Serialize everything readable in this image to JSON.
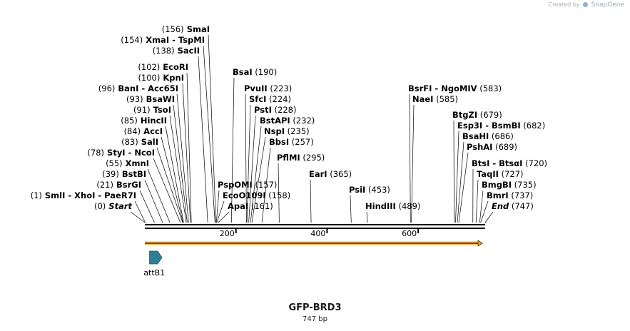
{
  "credit": {
    "prefix": "Created by",
    "brand": "SnapGene"
  },
  "plasmid": {
    "name": "GFP-BRD3",
    "length_label": "747 bp",
    "length": 747
  },
  "scale": {
    "ticks": [
      200,
      400,
      600
    ]
  },
  "sites": [
    {
      "pos": 156,
      "label": "(156)  SmaI"
    },
    {
      "pos": 154,
      "label": "(154)  XmaI  - TspMI"
    },
    {
      "pos": 138,
      "label": "(138)  SacII"
    },
    {
      "pos": 102,
      "label": "(102)  EcoRI"
    },
    {
      "pos": 100,
      "label": "(100)  KpnI"
    },
    {
      "pos": 96,
      "label": "(96)  BanI  - Acc65I"
    },
    {
      "pos": 93,
      "label": "(93)  BsaWI"
    },
    {
      "pos": 91,
      "label": "(91)  TsoI"
    },
    {
      "pos": 85,
      "label": "(85)  HincII"
    },
    {
      "pos": 84,
      "label": "(84)  AccI"
    },
    {
      "pos": 83,
      "label": "(83)  SalI"
    },
    {
      "pos": 78,
      "label": "(78)  StyI  - NcoI"
    },
    {
      "pos": 55,
      "label": "(55)  XmnI"
    },
    {
      "pos": 39,
      "label": "(39)  BstBI"
    },
    {
      "pos": 21,
      "label": "(21)  BsrGI"
    },
    {
      "pos": 1,
      "label": "(1)  SmlI  - XhoI  - PaeR7I"
    },
    {
      "pos": 0,
      "label": "(0)  Start"
    },
    {
      "pos": 190,
      "label": "BsaI  (190)"
    },
    {
      "pos": 223,
      "label": "PvuII  (223)"
    },
    {
      "pos": 224,
      "label": "SfcI  (224)"
    },
    {
      "pos": 228,
      "label": "PstI  (228)"
    },
    {
      "pos": 232,
      "label": "BstAPI  (232)"
    },
    {
      "pos": 235,
      "label": "NspI  (235)"
    },
    {
      "pos": 257,
      "label": "BbsI  (257)"
    },
    {
      "pos": 295,
      "label": "PflMI  (295)"
    },
    {
      "pos": 157,
      "label": "PspOMI  (157)"
    },
    {
      "pos": 158,
      "label": "EcoO109I  (158)"
    },
    {
      "pos": 161,
      "label": "ApaI  (161)"
    },
    {
      "pos": 365,
      "label": "EarI  (365)"
    },
    {
      "pos": 453,
      "label": "PsiI  (453)"
    },
    {
      "pos": 489,
      "label": "HindIII  (489)"
    },
    {
      "pos": 583,
      "label": "BsrFI  - NgoMIV  (583)"
    },
    {
      "pos": 585,
      "label": "NaeI  (585)"
    },
    {
      "pos": 679,
      "label": "BtgZI  (679)"
    },
    {
      "pos": 682,
      "label": "Esp3I  - BsmBI  (682)"
    },
    {
      "pos": 686,
      "label": "BsaHI  (686)"
    },
    {
      "pos": 689,
      "label": "PshAI  (689)"
    },
    {
      "pos": 720,
      "label": "BtsI  - BtsαI  (720)"
    },
    {
      "pos": 727,
      "label": "TaqII  (727)"
    },
    {
      "pos": 735,
      "label": "BmgBI  (735)"
    },
    {
      "pos": 737,
      "label": "BmrI  (737)"
    },
    {
      "pos": 747,
      "label": "End  (747)"
    }
  ],
  "features": [
    {
      "name": "GFP-BRD3 insert arrow",
      "start": 0,
      "end": 747,
      "color": "#f5a623"
    },
    {
      "name": "attB1",
      "label": "attB1",
      "start": 4,
      "end": 25,
      "color": "#2f7f93"
    }
  ],
  "colors": {
    "line": "#000000",
    "arrow": "#f5a623",
    "feature": "#2f7f93"
  }
}
